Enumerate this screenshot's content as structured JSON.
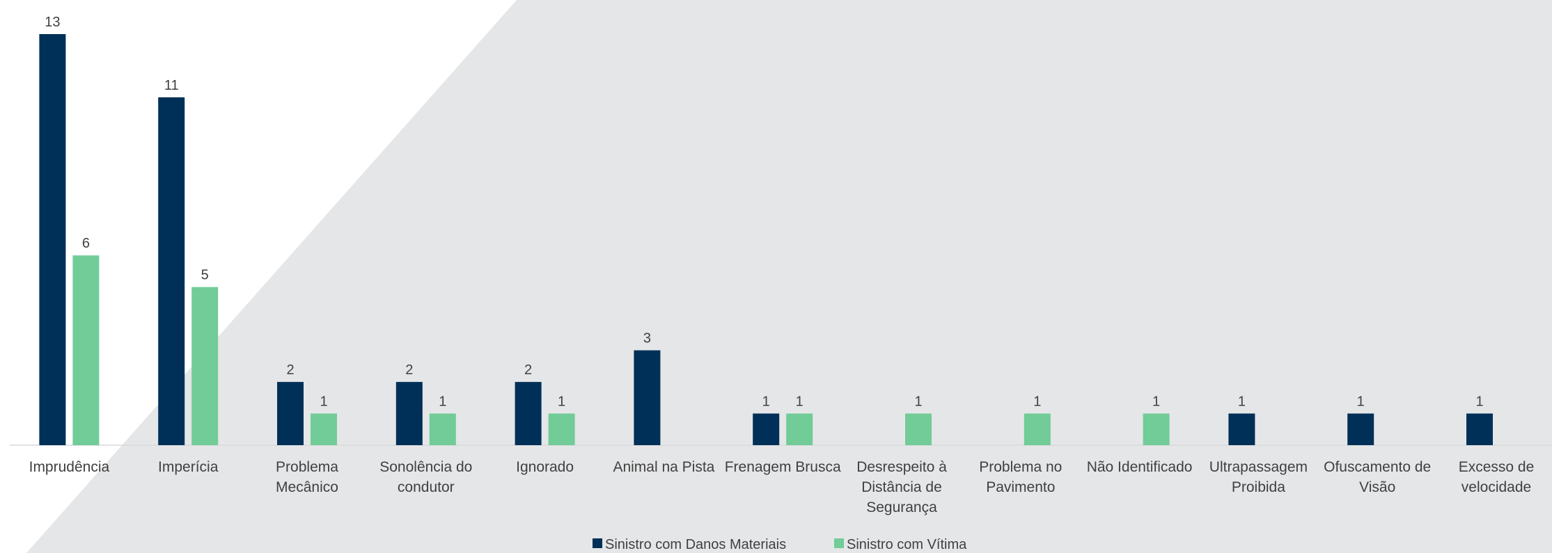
{
  "chart_data": {
    "type": "bar",
    "categories": [
      [
        "Imprudência"
      ],
      [
        "Imperícia"
      ],
      [
        "Problema",
        "Mecânico"
      ],
      [
        "Sonolência do",
        "condutor"
      ],
      [
        "Ignorado"
      ],
      [
        "Animal na Pista"
      ],
      [
        "Frenagem Brusca"
      ],
      [
        "Desrespeito à",
        "Distância de",
        "Segurança"
      ],
      [
        "Problema no",
        "Pavimento"
      ],
      [
        "Não Identificado"
      ],
      [
        "Ultrapassagem",
        "Proibida"
      ],
      [
        "Ofuscamento de",
        "Visão"
      ],
      [
        "Excesso de",
        "velocidade"
      ]
    ],
    "series": [
      {
        "name": "Sinistro com Danos Materiais",
        "color": "#003057",
        "values": [
          13,
          11,
          2,
          2,
          2,
          3,
          1,
          null,
          null,
          null,
          1,
          1,
          1
        ]
      },
      {
        "name": "Sinistro com Vítima",
        "color": "#71CC98",
        "values": [
          6,
          5,
          1,
          1,
          1,
          null,
          1,
          1,
          1,
          1,
          null,
          null,
          null
        ]
      }
    ],
    "ylim": [
      0,
      13
    ],
    "grid": false,
    "legend": "bottom-center",
    "data_labels": true
  },
  "background": {
    "shape_color": "#E5E6E8"
  }
}
